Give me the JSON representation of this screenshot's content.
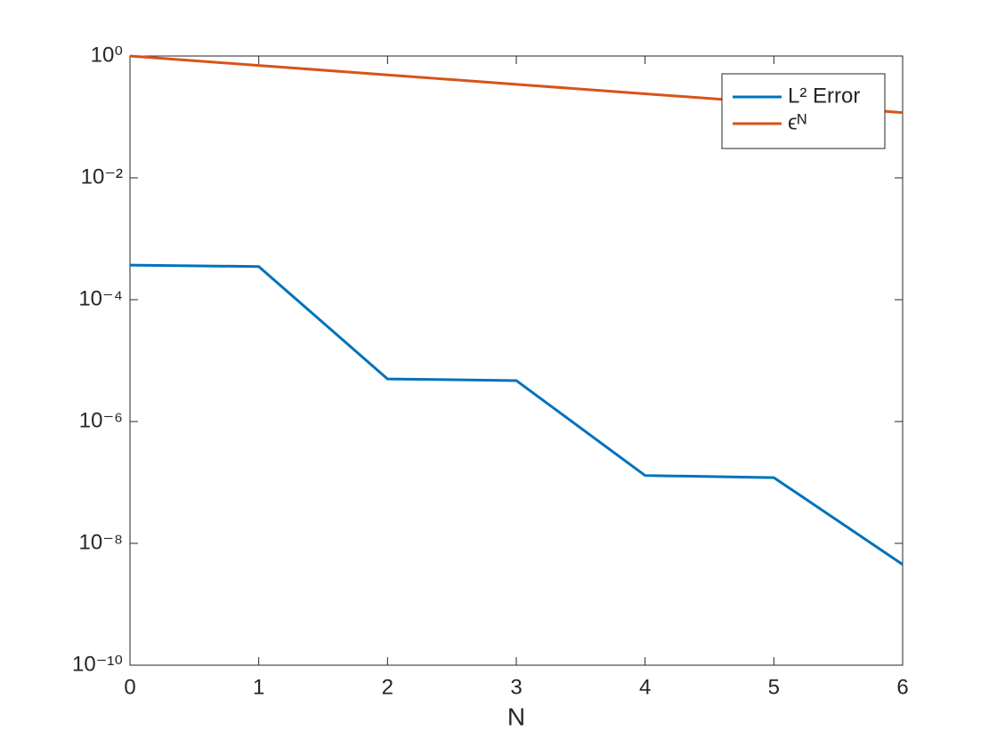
{
  "chart_data": {
    "type": "line",
    "xlabel": "N",
    "x": [
      0,
      1,
      2,
      3,
      4,
      5,
      6
    ],
    "series": [
      {
        "name": "L² Error",
        "color": "#0072bd",
        "values": [
          0.00037,
          0.00035,
          5e-06,
          4.7e-06,
          1.3e-07,
          1.2e-07,
          4.5e-09
        ]
      },
      {
        "name": "ϵᴺ",
        "color": "#d95319",
        "values": [
          1,
          0.7,
          0.49,
          0.343,
          0.2401,
          0.16807,
          0.117649
        ]
      }
    ],
    "xlim": [
      0,
      6
    ],
    "xticks": [
      0,
      1,
      2,
      3,
      4,
      5,
      6
    ],
    "ylim": [
      1e-10,
      1
    ],
    "ylog": true,
    "yticks": [
      {
        "value": 1e-10,
        "label": "10⁻¹⁰"
      },
      {
        "value": 1e-08,
        "label": "10⁻⁸"
      },
      {
        "value": 1e-06,
        "label": "10⁻⁶"
      },
      {
        "value": 0.0001,
        "label": "10⁻⁴"
      },
      {
        "value": 0.01,
        "label": "10⁻²"
      },
      {
        "value": 1,
        "label": "10⁰"
      }
    ],
    "grid": false,
    "legend": "northeast"
  }
}
